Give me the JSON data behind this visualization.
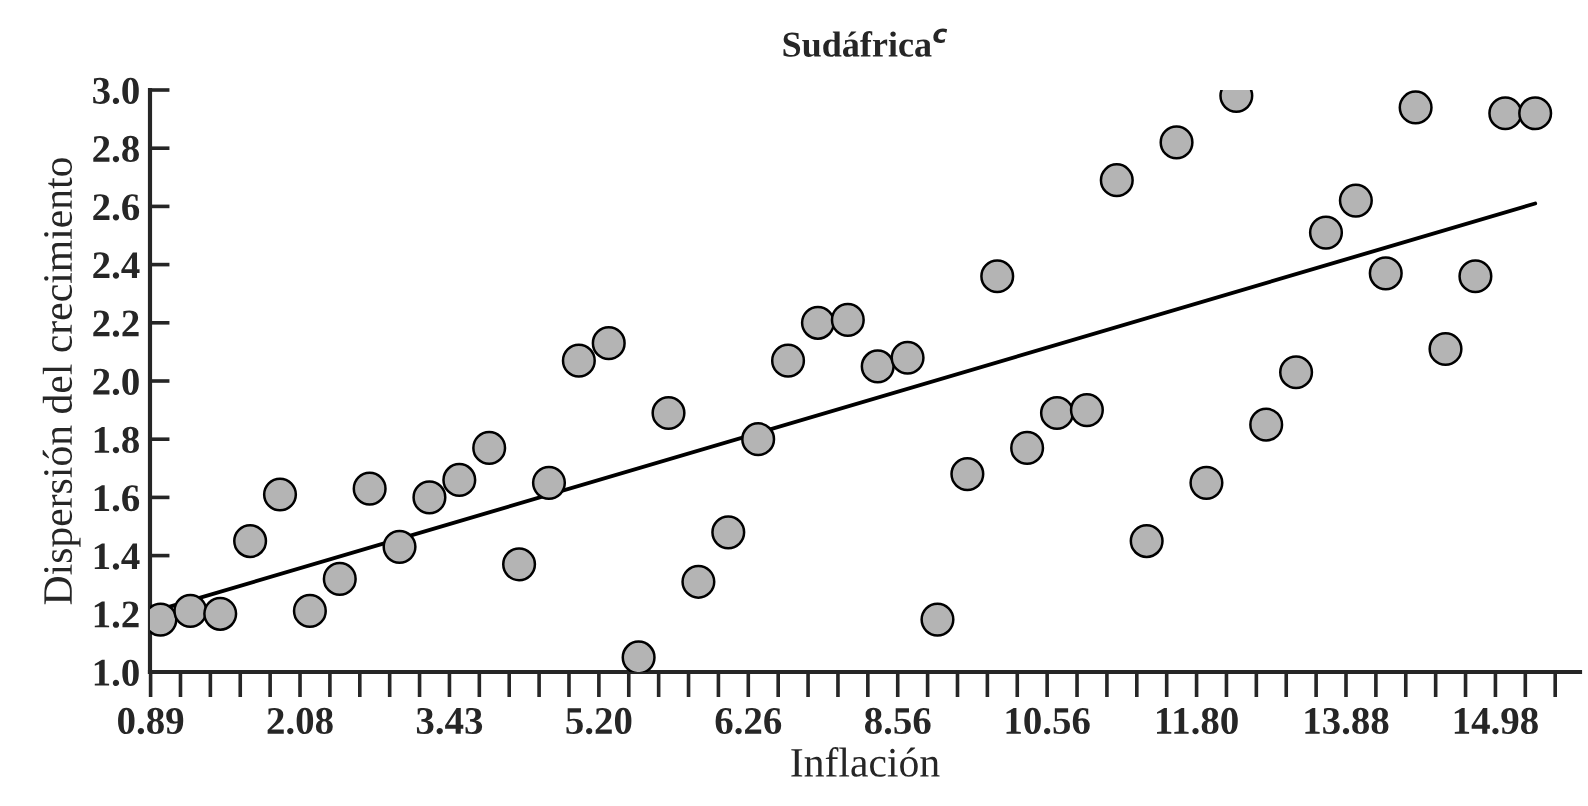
{
  "chart_data": {
    "type": "scatter",
    "title": "Sudáfrica$^{c}$",
    "xlabel": "Inflación",
    "ylabel": "Dispersión del crecimiento",
    "categories": [
      "0.89",
      null,
      null,
      null,
      null,
      "2.08",
      null,
      null,
      null,
      null,
      "3.43",
      null,
      null,
      null,
      null,
      "5.20",
      null,
      null,
      null,
      null,
      "6.26",
      null,
      null,
      null,
      null,
      "8.56",
      null,
      null,
      null,
      null,
      "10.56",
      null,
      null,
      null,
      null,
      "11.80",
      null,
      null,
      null,
      null,
      "13.88",
      null,
      null,
      null,
      null,
      "14.98",
      null
    ],
    "series": [
      {
        "color": "#b4b4b4",
        "marker": "circle",
        "values": [
          1.18,
          1.21,
          1.2,
          1.45,
          1.61,
          1.21,
          1.32,
          1.63,
          1.43,
          1.6,
          1.66,
          1.77,
          1.37,
          1.65,
          2.07,
          2.13,
          1.05,
          1.89,
          1.31,
          1.48,
          1.8,
          2.07,
          2.2,
          2.21,
          2.05,
          2.08,
          1.18,
          1.68,
          2.36,
          1.77,
          1.89,
          1.9,
          2.69,
          1.45,
          2.82,
          1.65,
          2.98,
          1.85,
          2.03,
          2.51,
          2.62,
          2.37,
          2.94,
          2.11,
          2.36,
          2.92,
          2.92
        ]
      },
      {
        "type": "line",
        "marker": "none",
        "color": "#000000",
        "values": [
          1.215,
          null,
          null,
          null,
          null,
          null,
          null,
          null,
          null,
          null,
          null,
          null,
          null,
          null,
          null,
          null,
          null,
          null,
          null,
          null,
          null,
          null,
          null,
          null,
          null,
          null,
          null,
          null,
          null,
          null,
          null,
          null,
          null,
          null,
          null,
          null,
          null,
          null,
          null,
          null,
          null,
          null,
          null,
          null,
          null,
          null,
          2.61
        ]
      }
    ],
    "ylim": [
      1.0,
      3.0
    ],
    "yticks": [
      {
        "value": 1.0,
        "label": "1.0"
      },
      {
        "value": 1.2,
        "label": "1.2"
      },
      {
        "value": 1.4,
        "label": "1.4"
      },
      {
        "value": 1.6,
        "label": "1.6"
      },
      {
        "value": 1.8,
        "label": "1.8"
      },
      {
        "value": 2.0,
        "label": "2.0"
      },
      {
        "value": 2.2,
        "label": "2.2"
      },
      {
        "value": 2.4,
        "label": "2.4"
      },
      {
        "value": 2.6,
        "label": "2.6"
      },
      {
        "value": 2.8,
        "label": "2.8"
      },
      {
        "value": 3.0,
        "label": "3.0"
      }
    ],
    "grid": false,
    "legend": false
  }
}
